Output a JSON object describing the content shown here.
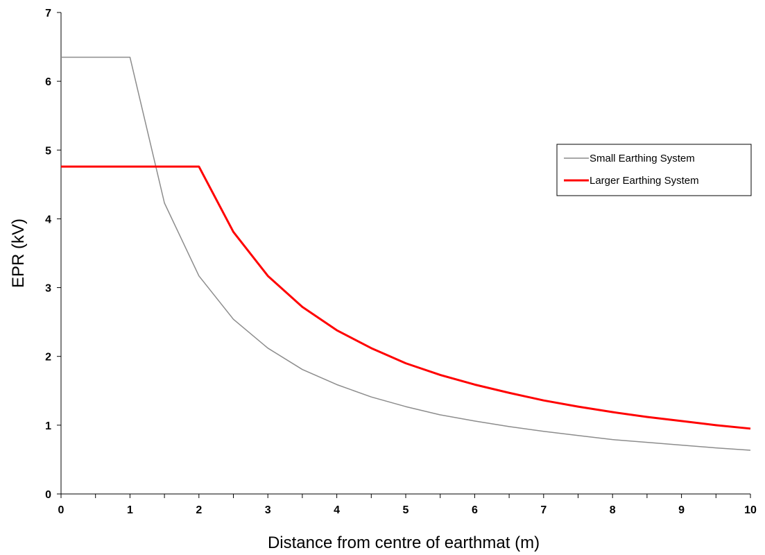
{
  "chart_data": {
    "type": "line",
    "title": "",
    "xlabel": "Distance from centre of earthmat (m)",
    "ylabel": "EPR (kV)",
    "xlim": [
      0,
      10
    ],
    "ylim": [
      0,
      7
    ],
    "x_ticks": [
      0,
      1,
      2,
      3,
      4,
      5,
      6,
      7,
      8,
      9,
      10
    ],
    "y_ticks": [
      0,
      1,
      2,
      3,
      4,
      5,
      6,
      7
    ],
    "grid": false,
    "legend_position": "right",
    "series": [
      {
        "name": "Small Earthing System",
        "color": "#8c8c8c",
        "x": [
          0,
          1,
          1.5,
          2,
          2.5,
          3,
          3.5,
          4,
          4.5,
          5,
          5.5,
          6,
          6.5,
          7,
          7.5,
          8,
          8.5,
          9,
          9.5,
          10
        ],
        "y": [
          6.35,
          6.35,
          4.23,
          3.17,
          2.54,
          2.12,
          1.81,
          1.59,
          1.41,
          1.27,
          1.15,
          1.06,
          0.98,
          0.91,
          0.85,
          0.79,
          0.75,
          0.71,
          0.67,
          0.635
        ]
      },
      {
        "name": "Larger Earthing System",
        "color": "#ff0000",
        "x": [
          0,
          2,
          2.5,
          3,
          3.5,
          4,
          4.5,
          5,
          5.5,
          6,
          6.5,
          7,
          7.5,
          8,
          8.5,
          9,
          9.5,
          10
        ],
        "y": [
          4.76,
          4.76,
          3.81,
          3.17,
          2.72,
          2.38,
          2.12,
          1.9,
          1.73,
          1.59,
          1.47,
          1.36,
          1.27,
          1.19,
          1.12,
          1.06,
          1.0,
          0.95
        ]
      }
    ]
  }
}
